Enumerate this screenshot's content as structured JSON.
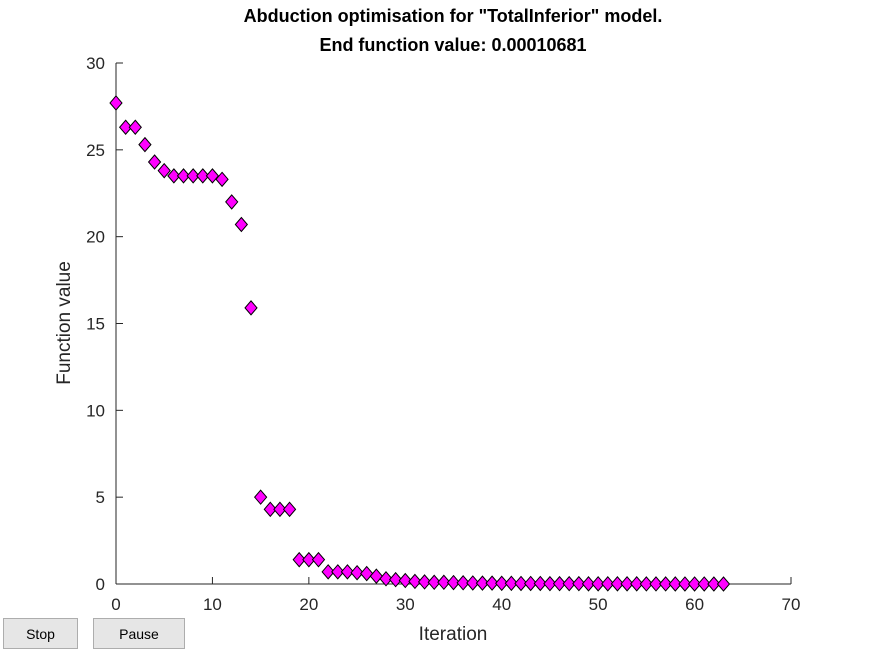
{
  "chart_data": {
    "type": "scatter",
    "title_line1": "Abduction optimisation for \"TotalInferior\" model.",
    "title_line2": "End function value: 0.00010681",
    "xlabel": "Iteration",
    "ylabel": "Function value",
    "xlim": [
      0,
      70
    ],
    "ylim": [
      0,
      30
    ],
    "xticks": [
      0,
      10,
      20,
      30,
      40,
      50,
      60,
      70
    ],
    "yticks": [
      0,
      5,
      10,
      15,
      20,
      25,
      30
    ],
    "grid": false,
    "marker": "diamond",
    "marker_color": "#ff00ff",
    "marker_edge_color": "#000000",
    "series": [
      {
        "x": [
          0,
          1,
          2,
          3,
          4,
          5,
          6,
          7,
          8,
          9,
          10,
          11,
          12,
          13,
          14,
          15,
          16,
          17,
          18,
          19,
          20,
          21,
          22,
          23,
          24,
          25,
          26,
          27,
          28,
          29,
          30,
          31,
          32,
          33,
          34,
          35,
          36,
          37,
          38,
          39,
          40,
          41,
          42,
          43,
          44,
          45,
          46,
          47,
          48,
          49,
          50,
          51,
          52,
          53,
          54,
          55,
          56,
          57,
          58,
          59,
          60,
          61,
          62,
          63
        ],
        "y": [
          27.7,
          26.3,
          26.3,
          25.3,
          24.3,
          23.8,
          23.5,
          23.5,
          23.5,
          23.5,
          23.5,
          23.3,
          22.0,
          20.7,
          15.9,
          5.0,
          4.3,
          4.3,
          4.3,
          1.4,
          1.4,
          1.4,
          0.7,
          0.7,
          0.7,
          0.65,
          0.6,
          0.45,
          0.3,
          0.25,
          0.2,
          0.15,
          0.12,
          0.1,
          0.1,
          0.08,
          0.07,
          0.06,
          0.05,
          0.05,
          0.04,
          0.04,
          0.03,
          0.03,
          0.03,
          0.02,
          0.02,
          0.02,
          0.02,
          0.01,
          0.01,
          0.01,
          0.01,
          0.01,
          0.01,
          0.005,
          0.005,
          0.005,
          0.003,
          0.002,
          0.001,
          0.0008,
          0.0005,
          0.00010681
        ]
      }
    ]
  },
  "controls": {
    "stop_label": "Stop",
    "pause_label": "Pause"
  }
}
